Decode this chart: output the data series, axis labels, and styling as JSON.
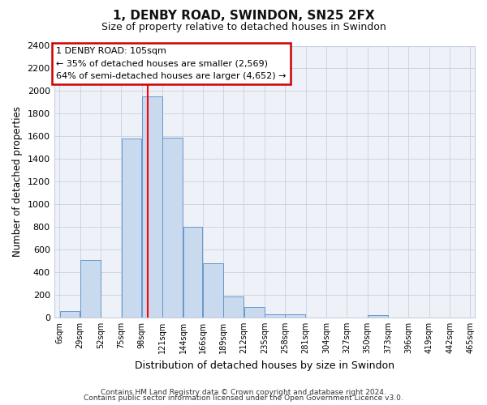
{
  "title": "1, DENBY ROAD, SWINDON, SN25 2FX",
  "subtitle": "Size of property relative to detached houses in Swindon",
  "xlabel": "Distribution of detached houses by size in Swindon",
  "ylabel": "Number of detached properties",
  "annotation_title": "1 DENBY ROAD: 105sqm",
  "annotation_line1": "← 35% of detached houses are smaller (2,569)",
  "annotation_line2": "64% of semi-detached houses are larger (4,652) →",
  "bar_left_edges": [
    6,
    29,
    52,
    75,
    98,
    121,
    144,
    166,
    189,
    212,
    235,
    258,
    281,
    304,
    327,
    350,
    373,
    396,
    419,
    442
  ],
  "bar_widths": [
    23,
    23,
    23,
    23,
    23,
    23,
    22,
    23,
    23,
    23,
    23,
    23,
    23,
    23,
    23,
    23,
    23,
    23,
    23,
    23
  ],
  "bar_heights": [
    55,
    505,
    0,
    1580,
    1950,
    1590,
    800,
    480,
    185,
    95,
    30,
    30,
    0,
    0,
    0,
    20,
    0,
    0,
    0,
    0
  ],
  "bar_color": "#c9d9ee",
  "bar_edge_color": "#6699cc",
  "red_line_x": 105,
  "ylim": [
    0,
    2400
  ],
  "yticks": [
    0,
    200,
    400,
    600,
    800,
    1000,
    1200,
    1400,
    1600,
    1800,
    2000,
    2200,
    2400
  ],
  "xtick_labels": [
    "6sqm",
    "29sqm",
    "52sqm",
    "75sqm",
    "98sqm",
    "121sqm",
    "144sqm",
    "166sqm",
    "189sqm",
    "212sqm",
    "235sqm",
    "258sqm",
    "281sqm",
    "304sqm",
    "327sqm",
    "350sqm",
    "373sqm",
    "396sqm",
    "419sqm",
    "442sqm",
    "465sqm"
  ],
  "xtick_positions": [
    6,
    29,
    52,
    75,
    98,
    121,
    144,
    166,
    189,
    212,
    235,
    258,
    281,
    304,
    327,
    350,
    373,
    396,
    419,
    442,
    465
  ],
  "footer_line1": "Contains HM Land Registry data © Crown copyright and database right 2024.",
  "footer_line2": "Contains public sector information licensed under the Open Government Licence v3.0.",
  "bg_color": "#ffffff",
  "plot_bg_color": "#eef2f8",
  "grid_color": "#c8d0de",
  "annotation_box_color": "#ffffff",
  "annotation_box_edge": "#cc0000",
  "title_fontsize": 11,
  "subtitle_fontsize": 9
}
